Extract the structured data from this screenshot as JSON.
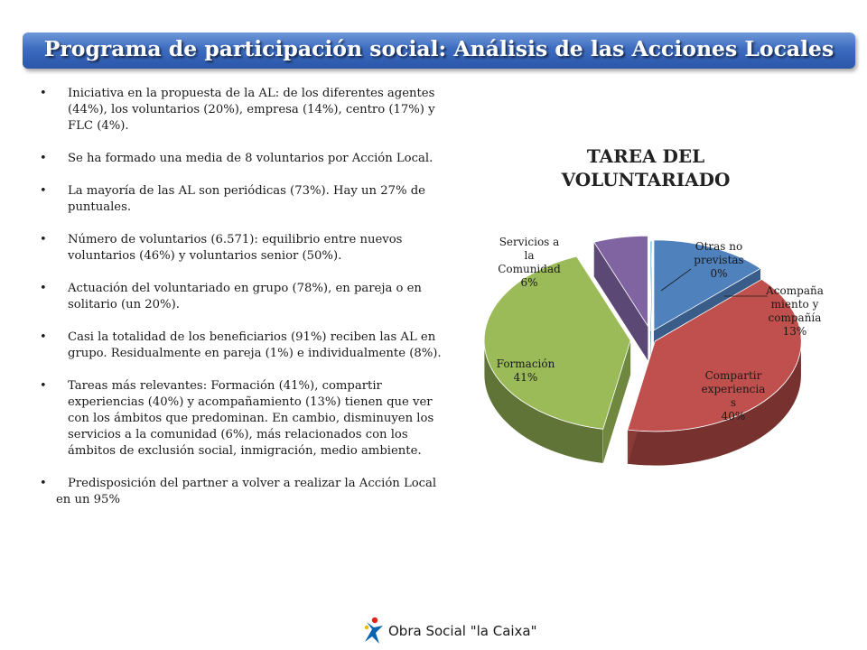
{
  "slide": {
    "title": "Programa de participación social: Análisis de las Acciones Locales",
    "bullets": [
      "Iniciativa en la propuesta de la AL: de los diferentes agentes (44%), los voluntarios (20%), empresa (14%), centro (17%) y FLC (4%).",
      "Se ha formado una media de 8 voluntarios por Acción Local.",
      "La mayoría de las AL son periódicas (73%). Hay un 27% de puntuales.",
      "Número de voluntarios (6.571): equilibrio entre nuevos voluntarios (46%) y voluntarios senior (50%).",
      "Actuación del voluntariado en grupo (78%), en pareja o en solitario (un 20%).",
      "Casi la totalidad de los beneficiarios (91%) reciben las AL en grupo. Residualmente en pareja (1%) e individualmente (8%).",
      "Tareas más relevantes: Formación (41%), compartir experiencias (40%) y acompañamiento (13%) tienen que ver con los ámbitos que predominan. En cambio, disminuyen los servicios a la comunidad (6%), más relacionados con los ámbitos de exclusión social, inmigración, medio ambiente.",
      "Predisposición del partner a volver a realizar la Acción Local en un 95%"
    ],
    "footer_brand": "Obra Social \"la Caixa\""
  },
  "chart_data": {
    "type": "pie",
    "title": "TAREA DEL VOLUNTARIADO",
    "slices": [
      {
        "label_lines": [
          "Acompaña",
          "miento y",
          "compañía"
        ],
        "value": 13,
        "value_label": "13%",
        "color": "#4f81bd"
      },
      {
        "label_lines": [
          "Compartir",
          "experiencia",
          "s"
        ],
        "value": 40,
        "value_label": "40%",
        "color": "#c0504d"
      },
      {
        "label_lines": [
          "Formación"
        ],
        "value": 41,
        "value_label": "41%",
        "color": "#9bbb59"
      },
      {
        "label_lines": [
          "Servicios a",
          "la",
          "Comunidad"
        ],
        "value": 6,
        "value_label": "6%",
        "color": "#8064a2"
      },
      {
        "label_lines": [
          "Otras no",
          "previstas"
        ],
        "value": 0,
        "value_label": "0%",
        "color": "#4bacc6"
      }
    ]
  }
}
